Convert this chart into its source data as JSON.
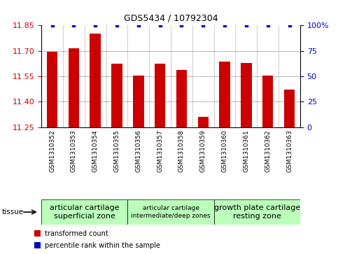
{
  "title": "GDS5434 / 10792304",
  "categories": [
    "GSM1310352",
    "GSM1310353",
    "GSM1310354",
    "GSM1310355",
    "GSM1310356",
    "GSM1310357",
    "GSM1310358",
    "GSM1310359",
    "GSM1310360",
    "GSM1310361",
    "GSM1310362",
    "GSM1310363"
  ],
  "bar_values": [
    11.695,
    11.715,
    11.8,
    11.625,
    11.555,
    11.625,
    11.585,
    11.31,
    11.635,
    11.63,
    11.555,
    11.47
  ],
  "percentile_values": [
    100,
    100,
    100,
    100,
    100,
    100,
    100,
    100,
    100,
    100,
    100,
    100
  ],
  "bar_color": "#cc0000",
  "percentile_color": "#0000cc",
  "ymin": 11.25,
  "ymax": 11.85,
  "yticks": [
    11.25,
    11.4,
    11.55,
    11.7,
    11.85
  ],
  "y2min": 0,
  "y2max": 100,
  "y2ticks": [
    0,
    25,
    50,
    75,
    100
  ],
  "y2ticklabels": [
    "0",
    "25",
    "50",
    "75",
    "100%"
  ],
  "tissue_groups": [
    {
      "label": "articular cartilage\nsuperficial zone",
      "start": 0,
      "end": 4,
      "color": "#bbffbb",
      "fontsize": 8
    },
    {
      "label": "articular cartilage\nintermediate/deep zones",
      "start": 4,
      "end": 8,
      "color": "#bbffbb",
      "fontsize": 6.5
    },
    {
      "label": "growth plate cartilage\nresting zone",
      "start": 8,
      "end": 12,
      "color": "#bbffbb",
      "fontsize": 8
    }
  ],
  "legend_items": [
    {
      "label": "transformed count",
      "color": "#cc0000"
    },
    {
      "label": "percentile rank within the sample",
      "color": "#0000cc"
    }
  ],
  "tissue_label": "tissue",
  "background_color": "#ffffff",
  "dotted_yticks": [
    11.4,
    11.55,
    11.7
  ],
  "bar_width": 0.5,
  "y_tick_color": "#cc0000",
  "y2_tick_color": "#0000cc"
}
